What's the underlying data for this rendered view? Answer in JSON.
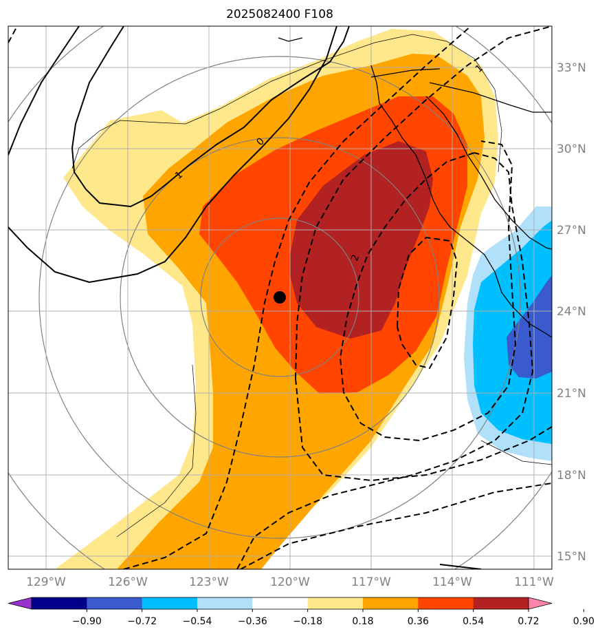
{
  "chart_data": {
    "type": "heatmap",
    "title": "2025082400 F108",
    "projection": "map",
    "lon_range": [
      -130.5,
      -110.5
    ],
    "lat_range": [
      14.5,
      34.5
    ],
    "lon_ticks": [
      "129°W",
      "126°W",
      "123°W",
      "120°W",
      "117°W",
      "114°W",
      "111°W"
    ],
    "lat_ticks": [
      "15°N",
      "18°N",
      "21°N",
      "24°N",
      "27°N",
      "30°N",
      "33°N"
    ],
    "grid": true,
    "storm_center": {
      "lon": -120.3,
      "lat": 24.5
    },
    "contour_labels": [
      "0",
      "1",
      "2",
      "1"
    ],
    "colorbar": {
      "orientation": "horizontal",
      "extend": "both",
      "levels": [
        "−0.90",
        "−0.72",
        "−0.54",
        "−0.36",
        "−0.18",
        "0.18",
        "0.36",
        "0.54",
        "0.72",
        "0.90"
      ],
      "colors": [
        "#9932CC",
        "#00008B",
        "#3A5BCD",
        "#00BFFF",
        "#B0E0FA",
        "#FFFFFF",
        "#FFE88C",
        "#FFA500",
        "#FF4500",
        "#B22222",
        "#FF85AA"
      ]
    },
    "shaded_regions": [
      {
        "value_range": [
          "0.18",
          "0.36"
        ],
        "color": "#FFE88C"
      },
      {
        "value_range": [
          "0.36",
          "0.54"
        ],
        "color": "#FFA500"
      },
      {
        "value_range": [
          "0.54",
          "0.72"
        ],
        "color": "#FF4500"
      },
      {
        "value_range": [
          "0.72",
          "0.90"
        ],
        "color": "#B22222"
      },
      {
        "value_range": [
          "−0.36",
          "−0.18"
        ],
        "color": "#B0E0FA"
      },
      {
        "value_range": [
          "−0.54",
          "−0.36"
        ],
        "color": "#00BFFF"
      },
      {
        "value_range": [
          "−0.72",
          "−0.54"
        ],
        "color": "#3A5BCD"
      }
    ]
  }
}
